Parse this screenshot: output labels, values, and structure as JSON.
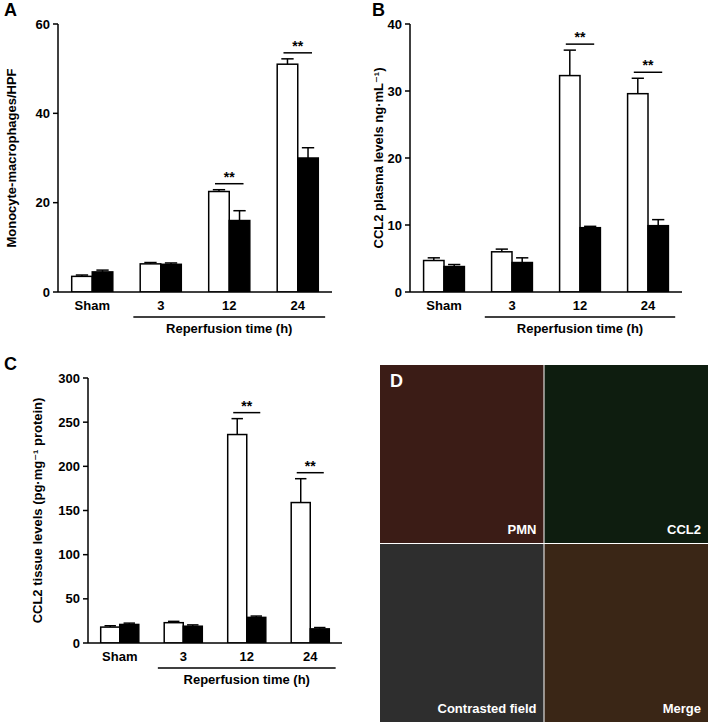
{
  "chart_data": [
    {
      "type": "bar",
      "title": "A",
      "y_label": "Monocyte-macrophages/HPF",
      "x_label": "Reperfusion time (h)",
      "categories": [
        "Sham",
        "3",
        "12",
        "24"
      ],
      "series": [
        {
          "color": "#ffffff",
          "values": [
            3.5,
            6.3,
            22.5,
            51
          ],
          "errors": [
            0.3,
            0.3,
            0.4,
            1.2
          ]
        },
        {
          "color": "#000000",
          "values": [
            4.5,
            6.2,
            16,
            30
          ],
          "errors": [
            0.4,
            0.3,
            2.2,
            2.3
          ]
        }
      ],
      "ylim": [
        0,
        60
      ],
      "yticks": [
        0,
        20,
        40,
        60
      ],
      "annotations": [
        {
          "text": "**",
          "category": "12"
        },
        {
          "text": "**",
          "category": "24"
        }
      ]
    },
    {
      "type": "bar",
      "title": "B",
      "y_label": "CCL2 plasma levels  ng·mL⁻¹)",
      "x_label": "Reperfusion time (h)",
      "categories": [
        "Sham",
        "3",
        "12",
        "24"
      ],
      "series": [
        {
          "color": "#ffffff",
          "values": [
            4.7,
            6.0,
            32.3,
            29.6
          ],
          "errors": [
            0.4,
            0.4,
            3.8,
            2.3
          ]
        },
        {
          "color": "#000000",
          "values": [
            3.8,
            4.4,
            9.6,
            9.9
          ],
          "errors": [
            0.3,
            0.7,
            0.2,
            0.9
          ]
        }
      ],
      "ylim": [
        0,
        40
      ],
      "yticks": [
        0,
        10,
        20,
        30,
        40
      ],
      "annotations": [
        {
          "text": "**",
          "category": "12"
        },
        {
          "text": "**",
          "category": "24"
        }
      ]
    },
    {
      "type": "bar",
      "title": "C",
      "y_label": "CCL2 tissue levels (pg·mg⁻¹ protein)",
      "x_label": "Reperfusion time (h)",
      "categories": [
        "Sham",
        "3",
        "12",
        "24"
      ],
      "series": [
        {
          "color": "#ffffff",
          "values": [
            18,
            23,
            236,
            159
          ],
          "errors": [
            1.5,
            1.5,
            18,
            27
          ]
        },
        {
          "color": "#000000",
          "values": [
            21,
            19,
            29,
            16
          ],
          "errors": [
            1.5,
            1.5,
            1.5,
            1.5
          ]
        }
      ],
      "ylim": [
        0,
        300
      ],
      "yticks": [
        0,
        50,
        100,
        150,
        200,
        250,
        300
      ],
      "annotations": [
        {
          "text": "**",
          "category": "12"
        },
        {
          "text": "**",
          "category": "24"
        }
      ]
    },
    {
      "type": "image",
      "title": "D",
      "labels": [
        "PMN",
        "CCL2",
        "Contrasted field",
        "Merge"
      ]
    }
  ]
}
